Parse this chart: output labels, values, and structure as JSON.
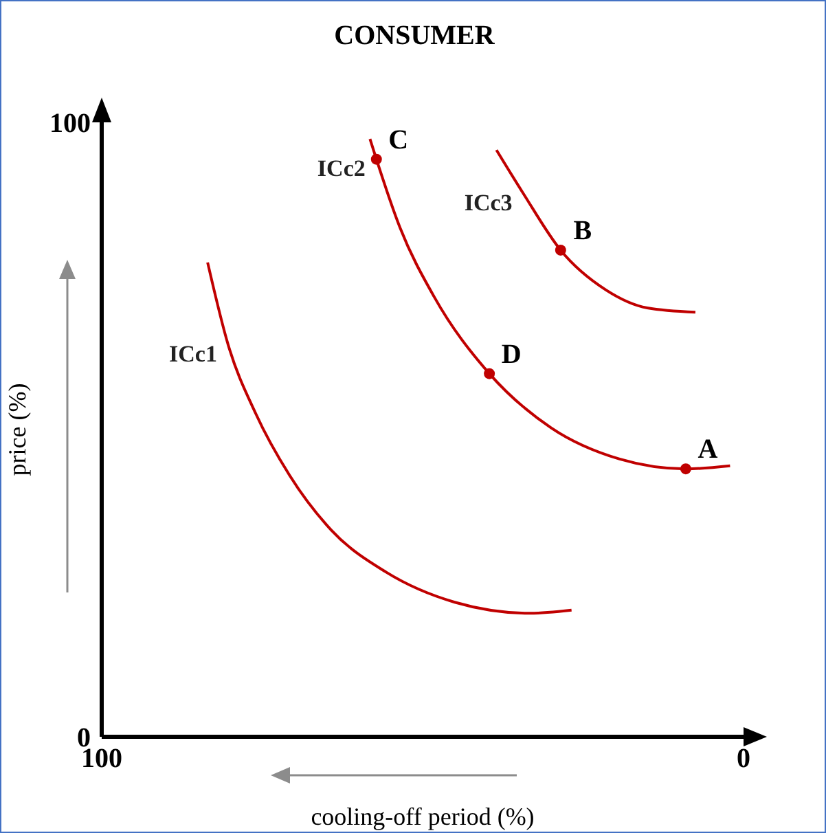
{
  "chart_data": {
    "type": "line",
    "title": "CONSUMER",
    "xlabel": "cooling-off period (%)",
    "ylabel": "price (%)",
    "xlim": [
      100,
      0
    ],
    "xticks": [
      100,
      0
    ],
    "ylim": [
      0,
      100
    ],
    "yticks": [
      0,
      100
    ],
    "grid": false,
    "legend": false,
    "marker": "none",
    "line_style": "solid",
    "series": [
      {
        "name": "ICc1",
        "color": "#c00000",
        "x": [
          83.5,
          80.3,
          76.0,
          70.7,
          64.2,
          55.7,
          45.0,
          33.2,
          26.8
        ],
        "values": [
          77.2,
          63.8,
          52.6,
          42.5,
          33.6,
          26.8,
          21.9,
          20.1,
          20.6
        ]
      },
      {
        "name": "ICc2",
        "color": "#c00000",
        "x": [
          58.2,
          57.2,
          53.5,
          48.2,
          39.6,
          30.0,
          19.3,
          9.0,
          2.1
        ],
        "values": [
          97.3,
          94.0,
          82.8,
          71.6,
          59.1,
          50.3,
          45.2,
          43.6,
          44.1
        ]
      },
      {
        "name": "ICc3",
        "color": "#c00000",
        "x": [
          38.5,
          34.3,
          28.5,
          21.4,
          15.0,
          7.5
        ],
        "values": [
          95.5,
          88.4,
          79.2,
          72.7,
          69.8,
          69.1
        ]
      },
      {
        "type": "scatter",
        "marker": "circle",
        "color": "#c00000",
        "x": [
          9.0,
          28.5,
          57.2,
          39.6
        ],
        "values": [
          43.6,
          79.2,
          94.0,
          59.1
        ]
      }
    ],
    "annotations": [
      {
        "text": "A",
        "x": 9.0,
        "y": 43.6
      },
      {
        "text": "B",
        "x": 28.5,
        "y": 79.2
      },
      {
        "text": "C",
        "x": 57.2,
        "y": 94.0
      },
      {
        "text": "D",
        "x": 39.6,
        "y": 59.1
      }
    ]
  }
}
